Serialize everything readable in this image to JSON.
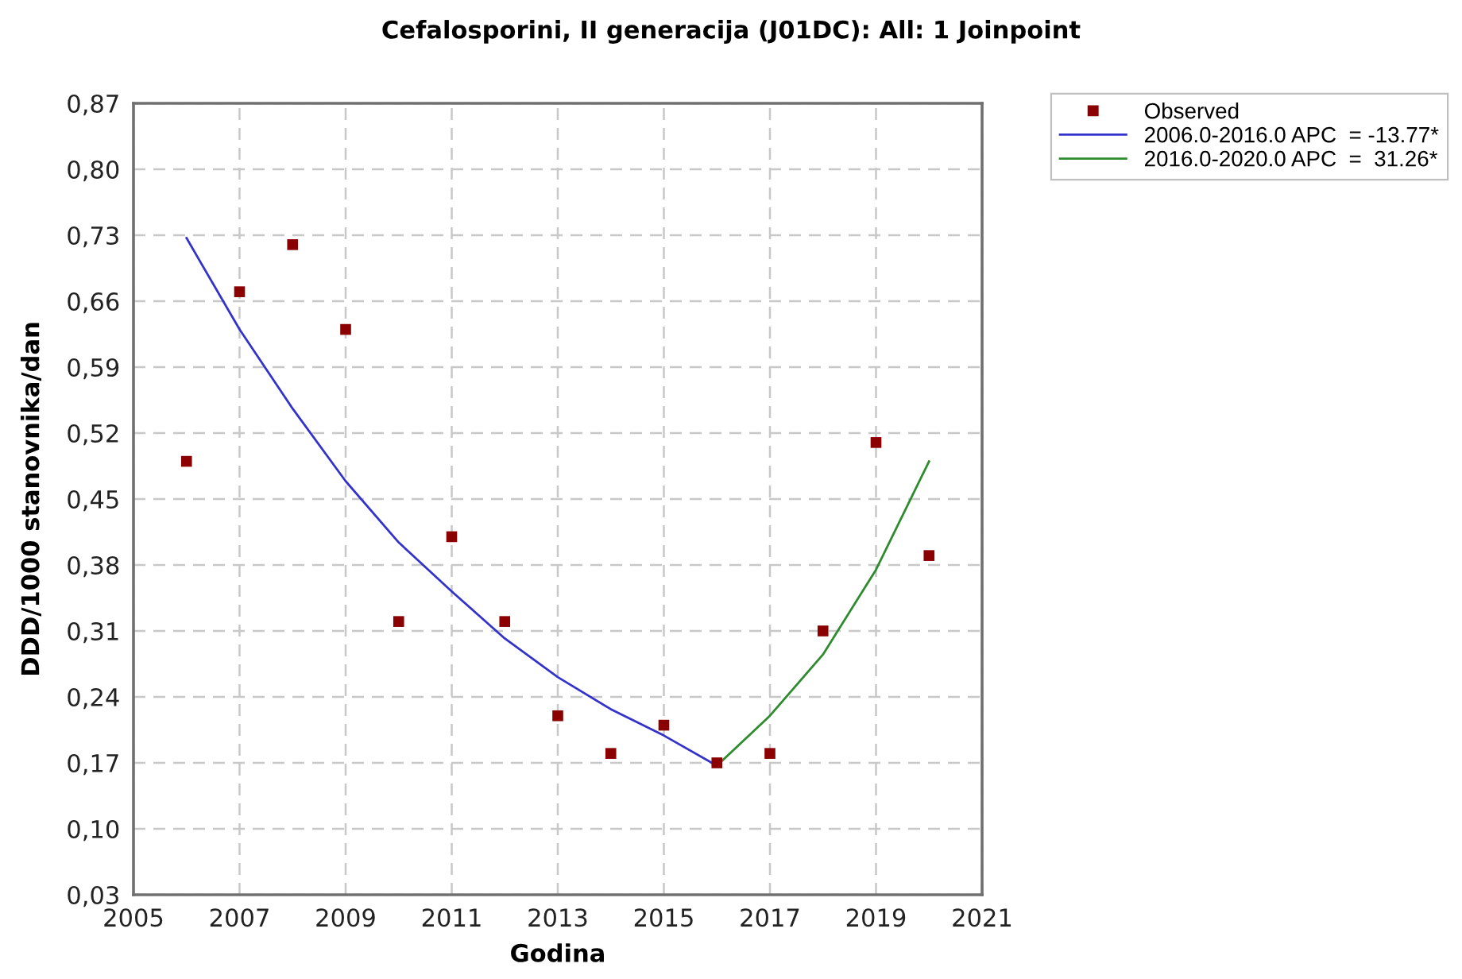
{
  "chart_data": {
    "type": "scatter",
    "title": "Cefalosporini, II generacija (J01DC): All: 1 Joinpoint",
    "xlabel": "Godina",
    "ylabel": "DDD/1000 stanovnika/dan",
    "series": [
      {
        "name": "Observed",
        "marker": "square",
        "color": "#8b0000",
        "x": [
          2006,
          2007,
          2008,
          2009,
          2010,
          2011,
          2012,
          2013,
          2014,
          2015,
          2016,
          2017,
          2018,
          2019,
          2020
        ],
        "values": [
          0.49,
          0.67,
          0.72,
          0.63,
          0.32,
          0.41,
          0.32,
          0.22,
          0.18,
          0.21,
          0.17,
          0.18,
          0.31,
          0.51,
          0.39
        ]
      },
      {
        "name": "2006.0-2016.0 APC  = -13.77*",
        "type": "line",
        "marker": "none",
        "line_style": "solid",
        "color": "#3333cc",
        "x": [
          2006,
          2007,
          2008,
          2009,
          2010,
          2011,
          2012,
          2013,
          2014,
          2015,
          2016
        ],
        "values": [
          0.727,
          0.63,
          0.546,
          0.469,
          0.404,
          0.352,
          0.302,
          0.261,
          0.227,
          0.199,
          0.167
        ]
      },
      {
        "name": "2016.0-2020.0 APC  =  31.26*",
        "type": "line",
        "marker": "none",
        "line_style": "solid",
        "color": "#2e8b2e",
        "x": [
          2016,
          2017,
          2018,
          2019,
          2020
        ],
        "values": [
          0.167,
          0.22,
          0.285,
          0.375,
          0.49
        ]
      }
    ],
    "xlim": [
      2005,
      2021
    ],
    "xticks": [
      2005,
      2007,
      2009,
      2011,
      2013,
      2015,
      2017,
      2019,
      2021
    ],
    "ylim": [
      0.03,
      0.87
    ],
    "yticks": [
      {
        "value": 0.03,
        "label": "0,03"
      },
      {
        "value": 0.1,
        "label": "0,10"
      },
      {
        "value": 0.17,
        "label": "0,17"
      },
      {
        "value": 0.24,
        "label": "0,24"
      },
      {
        "value": 0.31,
        "label": "0,31"
      },
      {
        "value": 0.38,
        "label": "0,38"
      },
      {
        "value": 0.45,
        "label": "0,45"
      },
      {
        "value": 0.52,
        "label": "0,52"
      },
      {
        "value": 0.59,
        "label": "0,59"
      },
      {
        "value": 0.66,
        "label": "0,66"
      },
      {
        "value": 0.73,
        "label": "0,73"
      },
      {
        "value": 0.8,
        "label": "0,80"
      },
      {
        "value": 0.87,
        "label": "0,87"
      }
    ],
    "grid": true,
    "legend": "top right"
  }
}
